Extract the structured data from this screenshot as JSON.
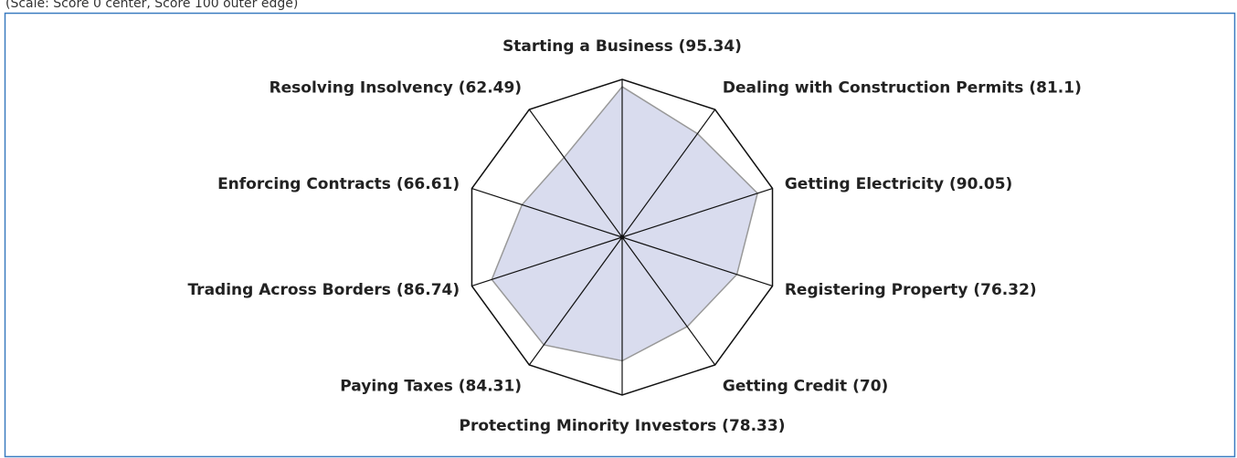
{
  "chart_data": {
    "type": "radar",
    "subtitle": "(Scale: Score 0 center, Score 100 outer edge)",
    "categories": [
      "Starting a Business",
      "Dealing with Construction Permits",
      "Getting Electricity",
      "Registering Property",
      "Getting Credit",
      "Protecting Minority Investors",
      "Paying Taxes",
      "Trading Across Borders",
      "Enforcing Contracts",
      "Resolving Insolvency"
    ],
    "values": [
      95.34,
      81.1,
      90.05,
      76.32,
      70,
      78.33,
      84.31,
      86.74,
      66.61,
      62.49
    ],
    "value_labels": [
      "(95.34)",
      "(81.1)",
      "(90.05)",
      "(76.32)",
      "(70)",
      "(78.33)",
      "(84.31)",
      "(86.74)",
      "(66.61)",
      "(62.49)"
    ],
    "rlim": [
      0,
      100
    ],
    "color": "#d9dcee"
  }
}
